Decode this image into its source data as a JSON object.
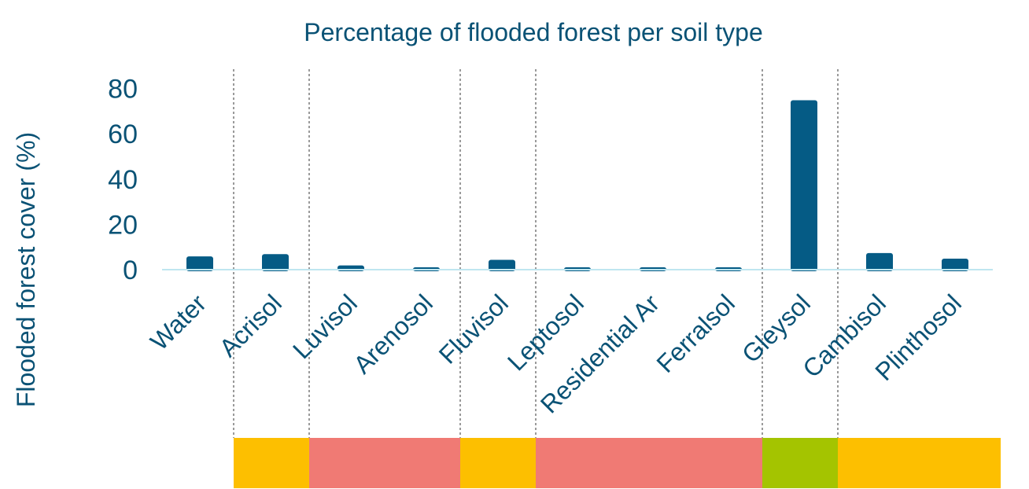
{
  "colors": {
    "text": "#0a5275",
    "bar": "#055b85",
    "axis_line": "#bfe6f0",
    "divider": "#9a9a9a",
    "band_orange": "#fdbf00",
    "band_red": "#f07a74",
    "band_green": "#a4c400"
  },
  "chart_data": {
    "type": "bar",
    "title": "Percentage of flooded forest per soil type",
    "ylabel": "Flooded forest cover (%)",
    "xlabel": "",
    "ylim": [
      0,
      88
    ],
    "yticks": [
      0,
      20,
      40,
      60,
      80
    ],
    "categories": [
      "Water",
      "Acrisol",
      "Luvisol",
      "Arenosol",
      "Fluvisol",
      "Leptosol",
      "Residential Ar",
      "Ferralsol",
      "Gleysol",
      "Cambisol",
      "Plinthosol"
    ],
    "values": [
      5.5,
      6.5,
      1.5,
      0.7,
      4,
      0.7,
      0.7,
      0.7,
      74.5,
      7,
      4.5
    ],
    "grid": false,
    "legend": "none",
    "group_dividers_after": [
      "Water",
      "Acrisol",
      "Arenosol",
      "Fluvisol",
      "Ferralsol",
      "Gleysol"
    ],
    "bottom_bands": [
      {
        "from": "Acrisol",
        "to": "Acrisol",
        "color": "band_orange"
      },
      {
        "from": "Luvisol",
        "to": "Arenosol",
        "color": "band_red"
      },
      {
        "from": "Fluvisol",
        "to": "Fluvisol",
        "color": "band_orange"
      },
      {
        "from": "Leptosol",
        "to": "Ferralsol",
        "color": "band_red"
      },
      {
        "from": "Gleysol",
        "to": "Gleysol",
        "color": "band_green"
      },
      {
        "from": "Cambisol",
        "to": "Plinthosol",
        "color": "band_orange"
      }
    ]
  }
}
